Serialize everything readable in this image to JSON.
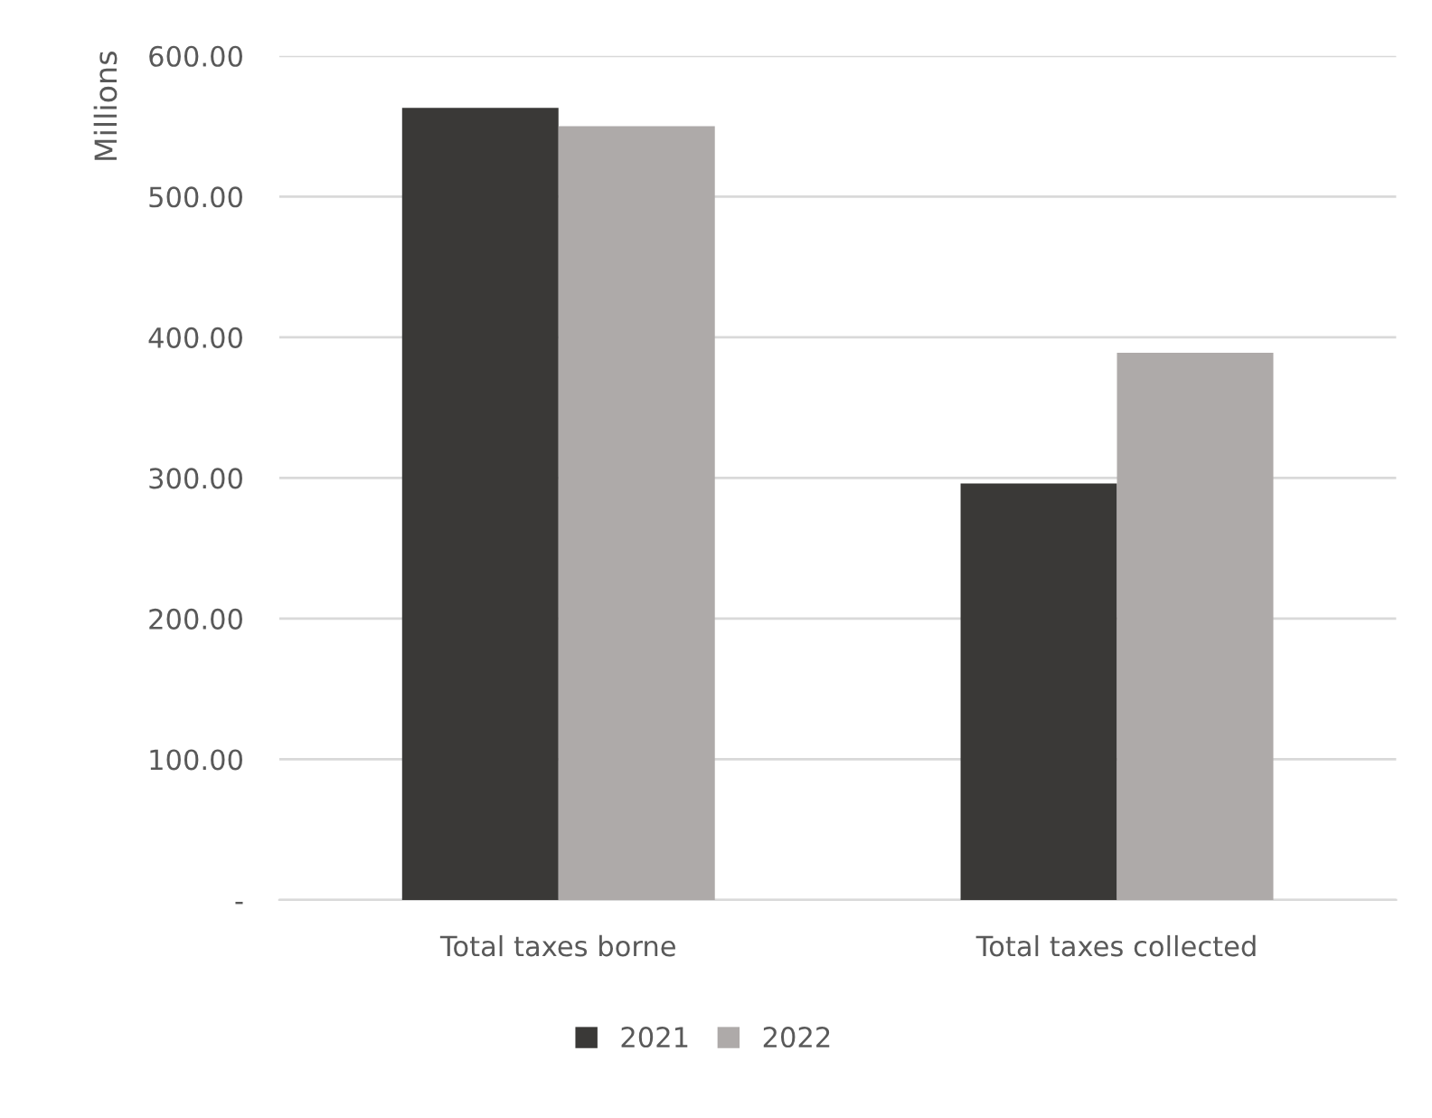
{
  "chart_data": {
    "type": "bar",
    "ylabel": "Millions",
    "categories": [
      "Total taxes borne",
      "Total taxes collected"
    ],
    "series": [
      {
        "name": "2021",
        "color": "#3a3937",
        "values": [
          563,
          296
        ]
      },
      {
        "name": "2022",
        "color": "#aeaaa9",
        "values": [
          550,
          389
        ]
      }
    ],
    "ylim": [
      0,
      600
    ],
    "yticks": [
      {
        "value": 0,
        "label": "-"
      },
      {
        "value": 100,
        "label": "100.00"
      },
      {
        "value": 200,
        "label": "200.00"
      },
      {
        "value": 300,
        "label": "300.00"
      },
      {
        "value": 400,
        "label": "400.00"
      },
      {
        "value": 500,
        "label": "500.00"
      },
      {
        "value": 600,
        "label": "600.00"
      }
    ],
    "grid": "y",
    "legend": "bottom"
  }
}
